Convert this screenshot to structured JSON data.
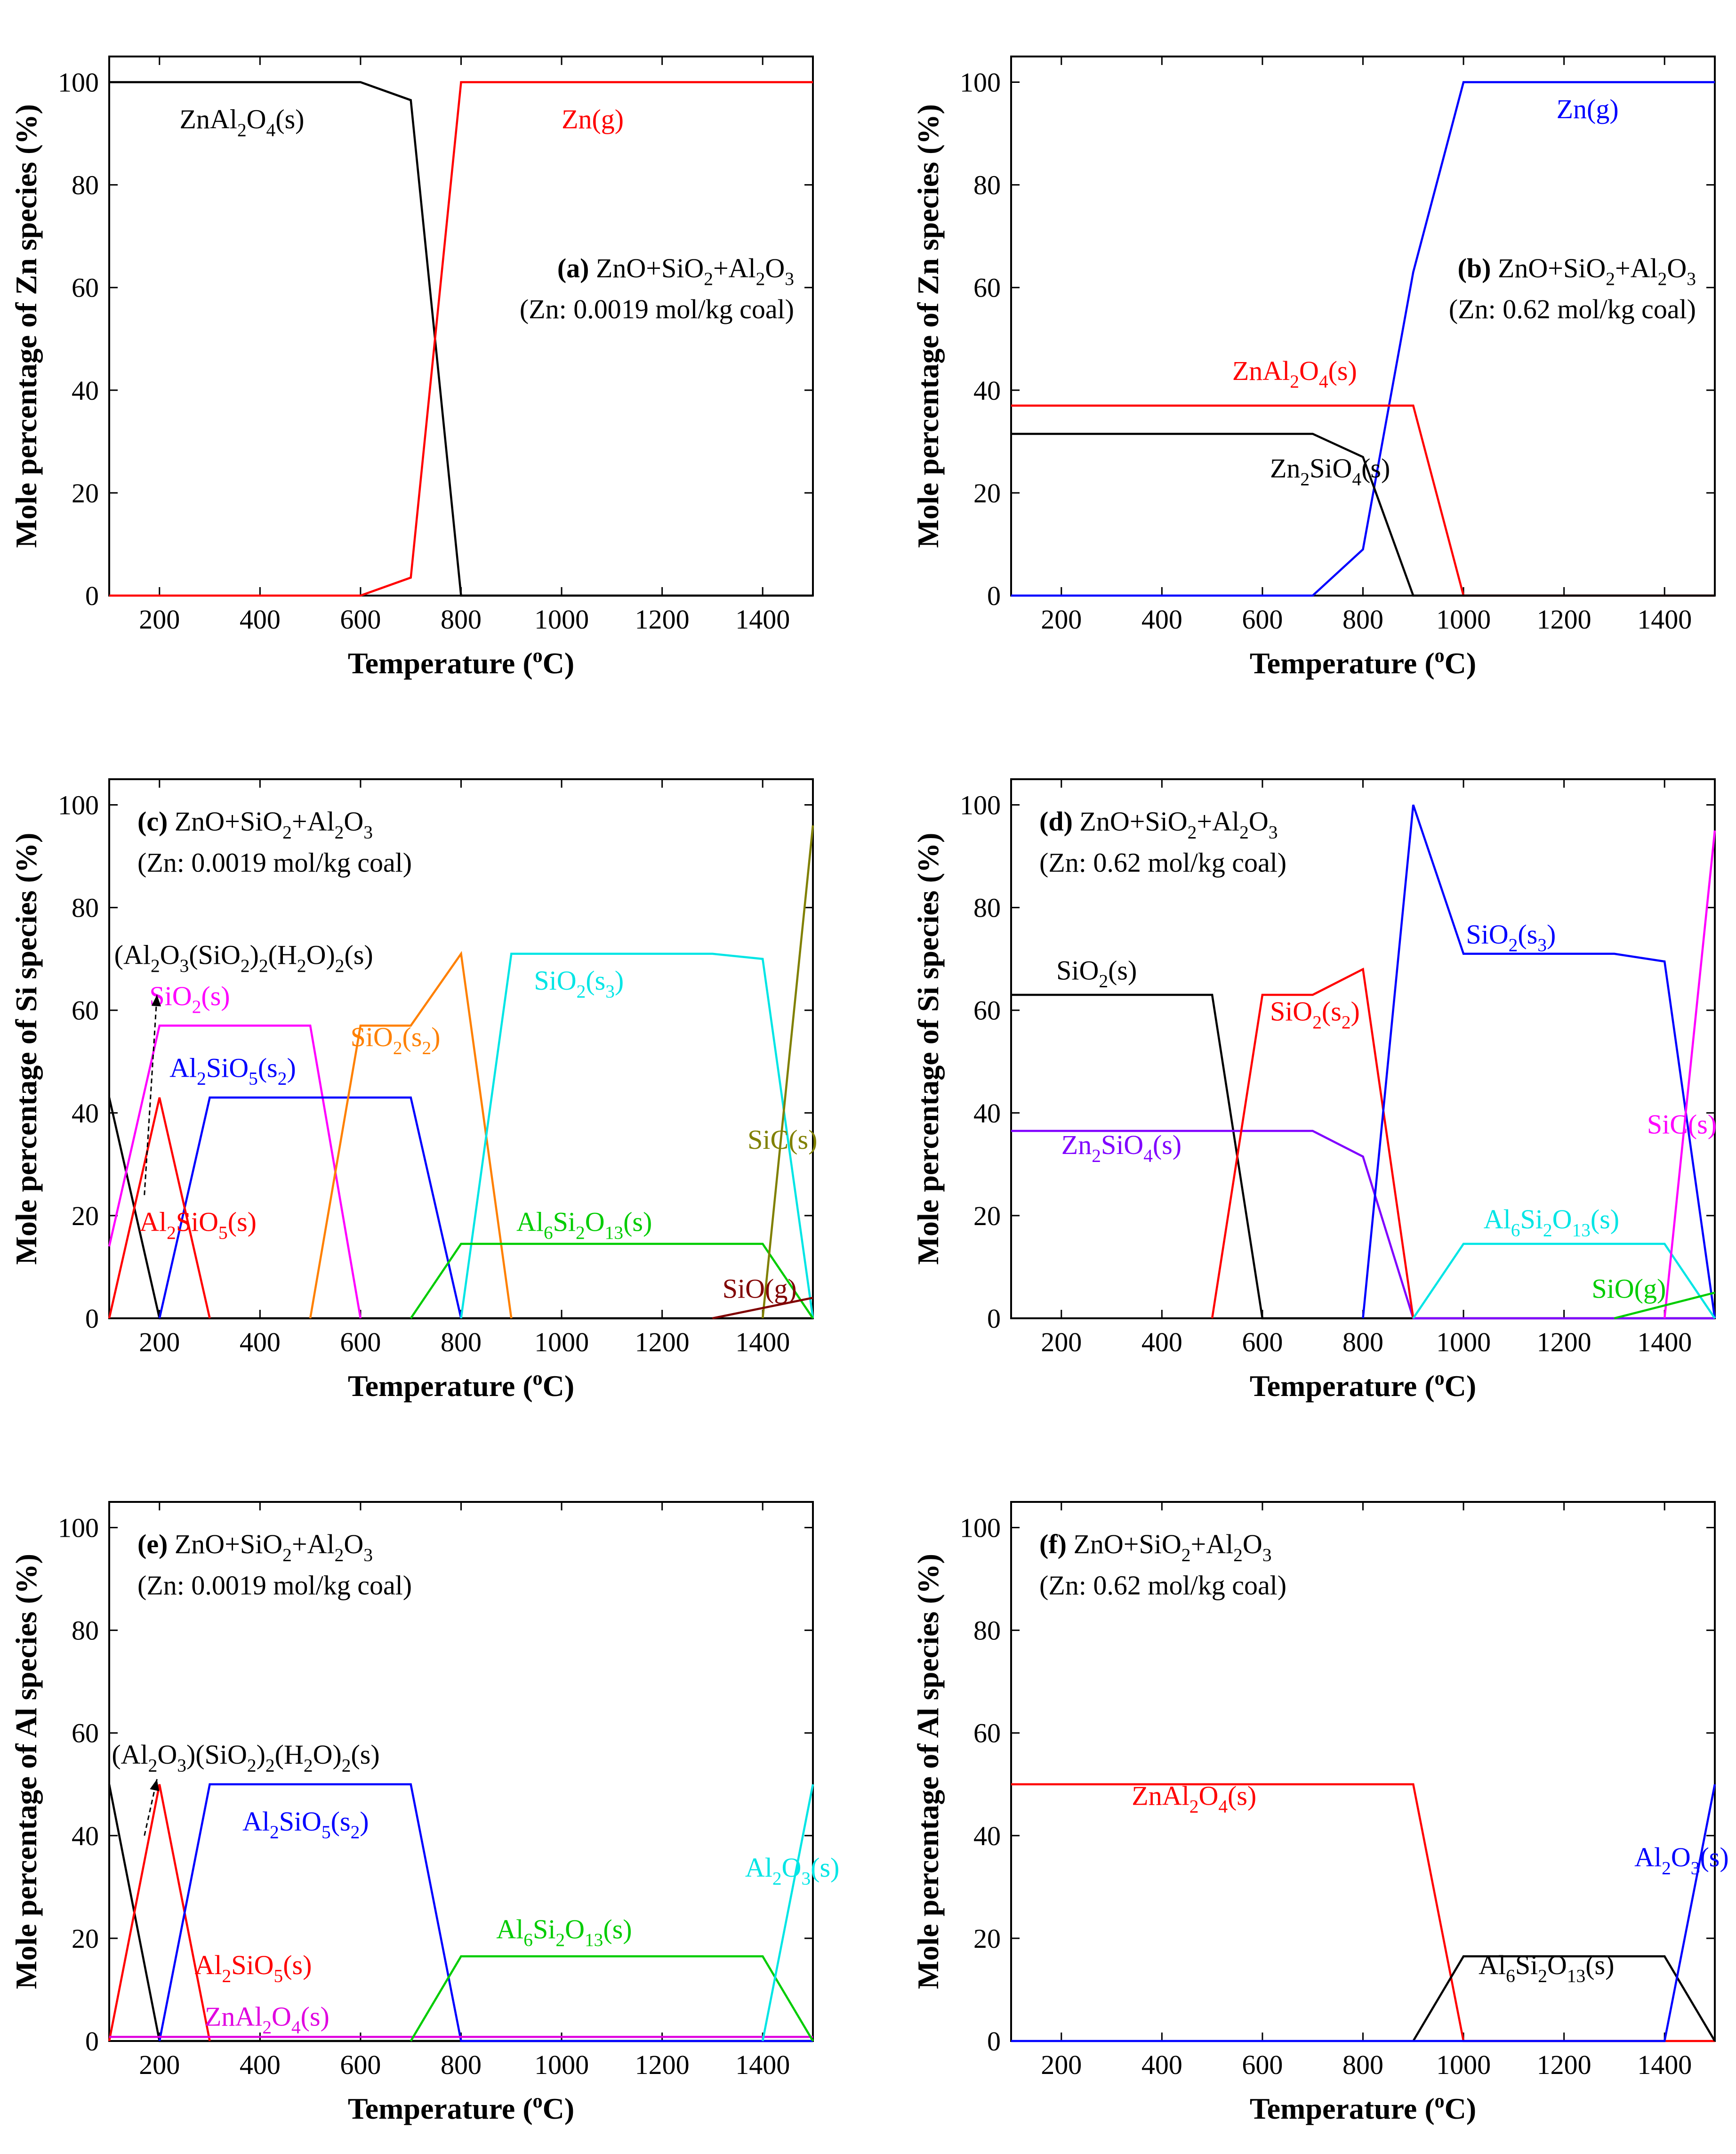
{
  "colors": {
    "black": "#000000",
    "red": "#ff0000",
    "blue": "#0000ff",
    "orange": "#ff8000",
    "magenta": "#ff00ff",
    "cyan": "#00e5e5",
    "green": "#00cc00",
    "olive": "#808000",
    "darkred": "#800000",
    "purple": "#8000ff",
    "pink": "#e000e0"
  },
  "chart_data": [
    {
      "id": "a",
      "type": "line",
      "title": "ZnO+SiO2+Al2O3",
      "title_label": "(a)",
      "subtitle": "(Zn: 0.0019 mol/kg coal)",
      "xlabel": "Temperature (oC)",
      "ylabel": "Mole percentage of Zn species (%)",
      "xlim": [
        100,
        1500
      ],
      "ylim": [
        0,
        105
      ],
      "xticks": [
        200,
        400,
        600,
        800,
        1000,
        1200,
        1400
      ],
      "yticks": [
        0,
        20,
        40,
        60,
        80,
        100
      ],
      "series": [
        {
          "name": "ZnAl2O4(s)",
          "color": "#000000",
          "x": [
            100,
            600,
            700,
            800,
            1500
          ],
          "y": [
            100,
            100,
            96.5,
            0,
            0
          ]
        },
        {
          "name": "Zn(g)",
          "color": "#ff0000",
          "x": [
            100,
            600,
            700,
            800,
            1500
          ],
          "y": [
            0,
            0,
            3.5,
            100,
            100
          ]
        }
      ],
      "labels": [
        {
          "text": "ZnAl2O4(s)",
          "x": 240,
          "y": 91,
          "color": "#000000"
        },
        {
          "text": "Zn(g)",
          "x": 1000,
          "y": 91,
          "color": "#ff0000"
        }
      ]
    },
    {
      "id": "b",
      "type": "line",
      "title": "ZnO+SiO2+Al2O3",
      "title_label": "(b)",
      "subtitle": "(Zn: 0.62 mol/kg coal)",
      "xlabel": "Temperature (oC)",
      "ylabel": "Mole percentage of Zn species (%)",
      "xlim": [
        100,
        1500
      ],
      "ylim": [
        0,
        105
      ],
      "xticks": [
        200,
        400,
        600,
        800,
        1000,
        1200,
        1400
      ],
      "yticks": [
        0,
        20,
        40,
        60,
        80,
        100
      ],
      "series": [
        {
          "name": "Zn(g)",
          "color": "#0000ff",
          "x": [
            100,
            700,
            800,
            900,
            1000,
            1500
          ],
          "y": [
            0,
            0,
            9,
            63,
            100,
            100
          ]
        },
        {
          "name": "ZnAl2O4(s)",
          "color": "#ff0000",
          "x": [
            100,
            900,
            1000,
            1500
          ],
          "y": [
            37,
            37,
            0,
            0
          ]
        },
        {
          "name": "Zn2SiO4(s)",
          "color": "#000000",
          "x": [
            100,
            700,
            800,
            900,
            1500
          ],
          "y": [
            31.5,
            31.5,
            27,
            0,
            0
          ]
        }
      ],
      "labels": [
        {
          "text": "Zn(g)",
          "x": 1185,
          "y": 93,
          "color": "#0000ff"
        },
        {
          "text": "ZnAl2O4(s)",
          "x": 540,
          "y": 42,
          "color": "#ff0000"
        },
        {
          "text": "Zn2SiO4(s)",
          "x": 615,
          "y": 23,
          "color": "#000000"
        }
      ]
    },
    {
      "id": "c",
      "type": "line",
      "title": "ZnO+SiO2+Al2O3",
      "title_label": "(c)",
      "subtitle": "(Zn: 0.0019 mol/kg coal)",
      "xlabel": "Temperature (oC)",
      "ylabel": "Mole percentage of Si species (%)",
      "xlim": [
        100,
        1500
      ],
      "ylim": [
        0,
        105
      ],
      "xticks": [
        200,
        400,
        600,
        800,
        1000,
        1200,
        1400
      ],
      "yticks": [
        0,
        20,
        40,
        60,
        80,
        100
      ],
      "series": [
        {
          "name": "(Al2O3(SiO2)2(H2O)2(s)",
          "color": "#000000",
          "x": [
            100,
            200,
            1500
          ],
          "y": [
            43,
            0,
            0
          ]
        },
        {
          "name": "SiO2(s)",
          "color": "#ff00ff",
          "x": [
            100,
            200,
            500,
            600
          ],
          "y": [
            14,
            57,
            57,
            0
          ]
        },
        {
          "name": "Al2SiO5(s2)",
          "color": "#0000ff",
          "x": [
            200,
            300,
            700,
            800
          ],
          "y": [
            0,
            43,
            43,
            0
          ]
        },
        {
          "name": "Al2SiO5(s)",
          "color": "#ff0000",
          "x": [
            100,
            200,
            300
          ],
          "y": [
            0,
            43,
            0
          ]
        },
        {
          "name": "SiO2(s2)",
          "color": "#ff8000",
          "x": [
            500,
            600,
            700,
            800,
            900
          ],
          "y": [
            0,
            57,
            57,
            71,
            0
          ]
        },
        {
          "name": "SiO2(s3)",
          "color": "#00e5e5",
          "x": [
            800,
            900,
            1300,
            1400,
            1500
          ],
          "y": [
            0,
            71,
            71,
            70,
            0
          ]
        },
        {
          "name": "Al6Si2O13(s)",
          "color": "#00cc00",
          "x": [
            700,
            800,
            1400,
            1500
          ],
          "y": [
            0,
            14.5,
            14.5,
            0
          ]
        },
        {
          "name": "SiC(s)",
          "color": "#808000",
          "x": [
            1400,
            1500
          ],
          "y": [
            0,
            96
          ]
        },
        {
          "name": "SiO(g)",
          "color": "#800000",
          "x": [
            1300,
            1500
          ],
          "y": [
            0,
            4
          ]
        }
      ],
      "labels": [
        {
          "text": "(Al2O3(SiO2)2(H2O)2(s)",
          "x": 110,
          "y": 69,
          "color": "#000000"
        },
        {
          "text": "SiO2(s)",
          "x": 180,
          "y": 61,
          "color": "#ff00ff"
        },
        {
          "text": "Al2SiO5(s2)",
          "x": 220,
          "y": 47,
          "color": "#0000ff"
        },
        {
          "text": "Al2SiO5(s)",
          "x": 160,
          "y": 17,
          "color": "#ff0000"
        },
        {
          "text": "SiO2(s2)",
          "x": 580,
          "y": 53,
          "color": "#ff8000"
        },
        {
          "text": "SiO2(s3)",
          "x": 945,
          "y": 64,
          "color": "#00e5e5"
        },
        {
          "text": "SiC(s)",
          "x": 1370,
          "y": 33,
          "color": "#808000"
        },
        {
          "text": "Al6Si2O13(s)",
          "x": 910,
          "y": 17,
          "color": "#00cc00"
        },
        {
          "text": "SiO(g)",
          "x": 1320,
          "y": 4,
          "color": "#800000"
        }
      ]
    },
    {
      "id": "d",
      "type": "line",
      "title": "ZnO+SiO2+Al2O3",
      "title_label": "(d)",
      "subtitle": "(Zn: 0.62 mol/kg coal)",
      "xlabel": "Temperature (oC)",
      "ylabel": "Mole percentage of Si species (%)",
      "xlim": [
        100,
        1500
      ],
      "ylim": [
        0,
        105
      ],
      "xticks": [
        200,
        400,
        600,
        800,
        1000,
        1200,
        1400
      ],
      "yticks": [
        0,
        20,
        40,
        60,
        80,
        100
      ],
      "series": [
        {
          "name": "SiO2(s)",
          "color": "#000000",
          "x": [
            100,
            500,
            600,
            1500
          ],
          "y": [
            63,
            63,
            0,
            0
          ]
        },
        {
          "name": "Zn2SiO4(s)",
          "color": "#8000ff",
          "x": [
            100,
            700,
            800,
            900,
            1500
          ],
          "y": [
            36.5,
            36.5,
            31.5,
            0,
            0
          ]
        },
        {
          "name": "SiO2(s2)",
          "color": "#ff0000",
          "x": [
            500,
            600,
            700,
            800,
            900
          ],
          "y": [
            0,
            63,
            63,
            68,
            0
          ]
        },
        {
          "name": "SiO2(s3)",
          "color": "#0000ff",
          "x": [
            800,
            900,
            1000,
            1300,
            1400,
            1500
          ],
          "y": [
            0,
            100,
            71,
            71,
            69.5,
            0
          ]
        },
        {
          "name": "Al6Si2O13(s)",
          "color": "#00e5e5",
          "x": [
            900,
            1000,
            1400,
            1500
          ],
          "y": [
            0,
            14.5,
            14.5,
            0
          ]
        },
        {
          "name": "SiC(s)",
          "color": "#ff00ff",
          "x": [
            1400,
            1500
          ],
          "y": [
            0,
            95
          ]
        },
        {
          "name": "SiO(g)",
          "color": "#00cc00",
          "x": [
            1300,
            1500
          ],
          "y": [
            0,
            5
          ]
        }
      ],
      "labels": [
        {
          "text": "SiO2(s)",
          "x": 190,
          "y": 66,
          "color": "#000000"
        },
        {
          "text": "SiO2(s2)",
          "x": 615,
          "y": 58,
          "color": "#ff0000"
        },
        {
          "text": "SiO2(s3)",
          "x": 1005,
          "y": 73,
          "color": "#0000ff"
        },
        {
          "text": "Zn2SiO4(s)",
          "x": 200,
          "y": 32,
          "color": "#8000ff"
        },
        {
          "text": "SiC(s)",
          "x": 1365,
          "y": 36,
          "color": "#ff00ff"
        },
        {
          "text": "Al6Si2O13(s)",
          "x": 1040,
          "y": 17.5,
          "color": "#00e5e5"
        },
        {
          "text": "SiO(g)",
          "x": 1255,
          "y": 4,
          "color": "#00cc00"
        }
      ]
    },
    {
      "id": "e",
      "type": "line",
      "title": "ZnO+SiO2+Al2O3",
      "title_label": "(e)",
      "subtitle": "(Zn: 0.0019 mol/kg coal)",
      "xlabel": "Temperature (oC)",
      "ylabel": "Mole percentage of Al species (%)",
      "xlim": [
        100,
        1500
      ],
      "ylim": [
        0,
        105
      ],
      "xticks": [
        200,
        400,
        600,
        800,
        1000,
        1200,
        1400
      ],
      "yticks": [
        0,
        20,
        40,
        60,
        80,
        100
      ],
      "series": [
        {
          "name": "(Al2O3)(SiO2)2(H2O)2(s)",
          "color": "#000000",
          "x": [
            100,
            200,
            1500
          ],
          "y": [
            50,
            0,
            0
          ]
        },
        {
          "name": "Al2SiO5(s)",
          "color": "#ff0000",
          "x": [
            100,
            200,
            300
          ],
          "y": [
            0,
            50,
            0
          ]
        },
        {
          "name": "Al2SiO5(s2)",
          "color": "#0000ff",
          "x": [
            200,
            300,
            700,
            800,
            1500
          ],
          "y": [
            0,
            50,
            50,
            0,
            0
          ]
        },
        {
          "name": "ZnAl2O4(s)",
          "color": "#e000e0",
          "x": [
            100,
            800,
            1500
          ],
          "y": [
            0.8,
            0.8,
            0.8
          ]
        },
        {
          "name": "Al6Si2O13(s)",
          "color": "#00cc00",
          "x": [
            700,
            800,
            1400,
            1500
          ],
          "y": [
            0,
            16.5,
            16.5,
            0
          ]
        },
        {
          "name": "Al2O3(s)",
          "color": "#00e5e5",
          "x": [
            1400,
            1500
          ],
          "y": [
            0,
            50
          ]
        }
      ],
      "labels": [
        {
          "text": "(Al2O3)(SiO2)2(H2O)2(s)",
          "x": 105,
          "y": 54,
          "color": "#000000"
        },
        {
          "text": "Al2SiO5(s2)",
          "x": 365,
          "y": 41,
          "color": "#0000ff"
        },
        {
          "text": "Al2SiO5(s)",
          "x": 270,
          "y": 13,
          "color": "#ff0000"
        },
        {
          "text": "ZnAl2O4(s)",
          "x": 290,
          "y": 3,
          "color": "#e000e0"
        },
        {
          "text": "Al6Si2O13(s)",
          "x": 870,
          "y": 20,
          "color": "#00cc00"
        },
        {
          "text": "Al2O3(s)",
          "x": 1365,
          "y": 32,
          "color": "#00e5e5"
        }
      ]
    },
    {
      "id": "f",
      "type": "line",
      "title": "ZnO+SiO2+Al2O3",
      "title_label": "(f)",
      "subtitle": "(Zn: 0.62 mol/kg coal)",
      "xlabel": "Temperature (oC)",
      "ylabel": "Mole percentage of Al species (%)",
      "xlim": [
        100,
        1500
      ],
      "ylim": [
        0,
        105
      ],
      "xticks": [
        200,
        400,
        600,
        800,
        1000,
        1200,
        1400
      ],
      "yticks": [
        0,
        20,
        40,
        60,
        80,
        100
      ],
      "series": [
        {
          "name": "ZnAl2O4(s)",
          "color": "#ff0000",
          "x": [
            100,
            900,
            1000,
            1500
          ],
          "y": [
            50,
            50,
            0,
            0
          ]
        },
        {
          "name": "Al6Si2O13(s)",
          "color": "#000000",
          "x": [
            900,
            1000,
            1400,
            1500
          ],
          "y": [
            0,
            16.5,
            16.5,
            0
          ]
        },
        {
          "name": "Al2O3(s)",
          "color": "#0000ff",
          "x": [
            100,
            1400,
            1500
          ],
          "y": [
            0,
            0,
            50
          ]
        }
      ],
      "labels": [
        {
          "text": "ZnAl2O4(s)",
          "x": 340,
          "y": 46,
          "color": "#ff0000"
        },
        {
          "text": "Al6Si2O13(s)",
          "x": 1030,
          "y": 13,
          "color": "#000000"
        },
        {
          "text": "Al2O3(s)",
          "x": 1340,
          "y": 34,
          "color": "#0000ff"
        }
      ]
    }
  ]
}
